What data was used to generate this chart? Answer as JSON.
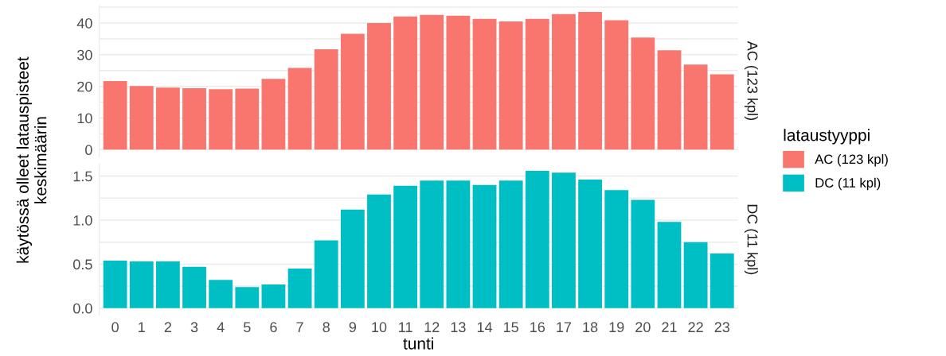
{
  "chart_data": [
    {
      "type": "bar",
      "y2label": "AC (123 kpl)",
      "ylabel": "käytössä olleet latauspisteet\nkeskimäärin",
      "legend_title": "lataustyyppi",
      "legend": "right",
      "grid": "y",
      "tick_labels": "y",
      "categories": [
        "0",
        "1",
        "2",
        "3",
        "4",
        "5",
        "6",
        "7",
        "8",
        "9",
        "10",
        "11",
        "12",
        "13",
        "14",
        "15",
        "16",
        "17",
        "18",
        "19",
        "20",
        "21",
        "22",
        "23"
      ],
      "series": [
        {
          "name": "AC (123 kpl)",
          "color": "#f8766d",
          "values": [
            21.7,
            20.1,
            19.6,
            19.4,
            19.1,
            19.3,
            22.4,
            25.8,
            31.7,
            36.6,
            40.0,
            42.1,
            42.6,
            42.3,
            41.3,
            40.5,
            41.3,
            42.8,
            43.5,
            40.9,
            35.4,
            31.4,
            26.9,
            23.8
          ]
        }
      ],
      "ylim": [
        -2.2,
        45.6
      ],
      "yticks": [
        0,
        {
          "value": 5,
          "label": null
        },
        10,
        {
          "value": 15,
          "label": null
        },
        20,
        {
          "value": 25,
          "label": null
        },
        30,
        {
          "value": 35,
          "label": null
        },
        40,
        {
          "value": 45,
          "label": null
        }
      ]
    },
    {
      "type": "bar",
      "y2label": "DC (11 kpl)",
      "xlabel": "tunti",
      "grid": "y",
      "categories": [
        "0",
        "1",
        "2",
        "3",
        "4",
        "5",
        "6",
        "7",
        "8",
        "9",
        "10",
        "11",
        "12",
        "13",
        "14",
        "15",
        "16",
        "17",
        "18",
        "19",
        "20",
        "21",
        "22",
        "23"
      ],
      "series": [
        {
          "name": "DC (11 kpl)",
          "color": "#00bfc4",
          "values": [
            0.54,
            0.53,
            0.53,
            0.47,
            0.32,
            0.24,
            0.27,
            0.45,
            0.77,
            1.12,
            1.29,
            1.39,
            1.45,
            1.45,
            1.4,
            1.45,
            1.56,
            1.54,
            1.46,
            1.34,
            1.23,
            0.98,
            0.75,
            0.62
          ]
        }
      ],
      "ylim": [
        -0.078,
        1.64
      ],
      "yticks": [
        {
          "value": 0,
          "label": "0.0"
        },
        {
          "value": 0.25,
          "label": null
        },
        {
          "value": 0.5,
          "label": "0.5"
        },
        {
          "value": 0.75,
          "label": null
        },
        {
          "value": 1.0,
          "label": "1.0"
        },
        {
          "value": 1.25,
          "label": null
        },
        {
          "value": 1.5,
          "label": "1.5"
        }
      ]
    }
  ]
}
